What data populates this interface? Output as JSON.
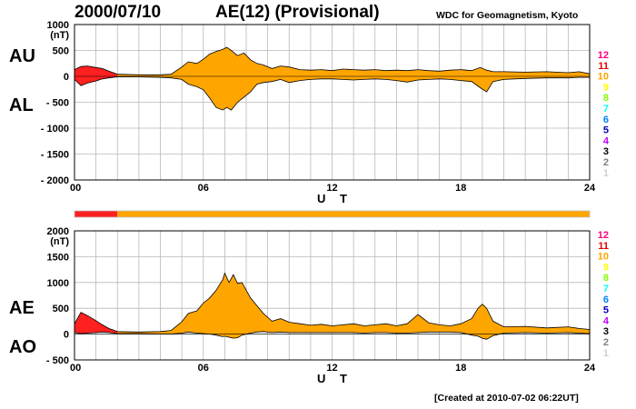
{
  "header": {
    "date": "2000/07/10",
    "title": "AE(12) (Provisional)",
    "source": "WDC for Geomagnetism, Kyoto"
  },
  "footer": "[Created at 2010-07-02 06:22UT]",
  "colors": {
    "orange": "#ffa500",
    "red": "#ff2020",
    "grid": "#b8b8b8"
  },
  "legend": {
    "levels": [
      "12",
      "11",
      "10",
      "9",
      "8",
      "7",
      "6",
      "5",
      "4",
      "3",
      "2",
      "1"
    ],
    "colors": [
      "#ff0080",
      "#e00000",
      "#ffa500",
      "#ffff00",
      "#80ff00",
      "#00ffff",
      "#0080ff",
      "#0000c0",
      "#c000ff",
      "#000000",
      "#808080",
      "#d0d0d0"
    ]
  },
  "status_bar": {
    "segments": [
      {
        "from": 0,
        "to": 2,
        "level": "11",
        "color": "#ff2020"
      },
      {
        "from": 2,
        "to": 24,
        "level": "10",
        "color": "#ffa500"
      }
    ]
  },
  "chart_data": [
    {
      "type": "area",
      "name": "AU-AL",
      "unit_label": "(nT)",
      "upper_label": "AU",
      "lower_label": "AL",
      "xlabel": "U T",
      "xlim": [
        0,
        24
      ],
      "ylim": [
        -2000,
        1000
      ],
      "yticks": [
        "1000",
        "500",
        "0",
        "- 500",
        "- 1000",
        "- 1500",
        "- 2000"
      ],
      "ytick_values": [
        1000,
        500,
        0,
        -500,
        -1000,
        -1500,
        -2000
      ],
      "xticks": [
        "00",
        "06",
        "12",
        "18",
        "24"
      ],
      "xtick_values": [
        0,
        6,
        12,
        18,
        24
      ],
      "red_until_hour": 2,
      "series": [
        {
          "name": "AU",
          "x": [
            0,
            0.3,
            0.6,
            1,
            1.3,
            1.6,
            2,
            3,
            4,
            4.5,
            5,
            5.3,
            5.7,
            6,
            6.3,
            6.6,
            6.9,
            7.1,
            7.3,
            7.6,
            7.9,
            8.2,
            8.5,
            8.8,
            9.2,
            9.6,
            10,
            10.5,
            11,
            11.5,
            12,
            12.5,
            13,
            13.5,
            14,
            14.5,
            15,
            15.5,
            16,
            16.5,
            17,
            17.5,
            18,
            18.5,
            18.9,
            19.2,
            19.5,
            20,
            21,
            22,
            23,
            23.5,
            24
          ],
          "values": [
            130,
            190,
            200,
            170,
            150,
            100,
            40,
            30,
            30,
            40,
            180,
            280,
            250,
            330,
            430,
            480,
            520,
            560,
            500,
            400,
            450,
            320,
            250,
            220,
            150,
            200,
            180,
            130,
            120,
            130,
            110,
            140,
            130,
            120,
            130,
            110,
            120,
            110,
            130,
            110,
            100,
            120,
            130,
            110,
            170,
            120,
            90,
            90,
            80,
            90,
            70,
            90,
            50
          ]
        },
        {
          "name": "AL",
          "x": [
            0,
            0.3,
            0.6,
            1,
            1.3,
            1.6,
            2,
            3,
            4,
            4.5,
            5,
            5.3,
            5.7,
            6,
            6.3,
            6.6,
            6.9,
            7.1,
            7.3,
            7.6,
            7.9,
            8.2,
            8.5,
            8.8,
            9.2,
            9.6,
            10,
            10.5,
            11,
            11.5,
            12,
            12.5,
            13,
            13.5,
            14,
            14.5,
            15,
            15.5,
            16,
            16.5,
            17,
            17.5,
            18,
            18.5,
            18.9,
            19.2,
            19.5,
            20,
            21,
            22,
            23,
            23.5,
            24
          ],
          "values": [
            -60,
            -180,
            -130,
            -90,
            -50,
            -30,
            -10,
            -10,
            -20,
            -30,
            -60,
            -150,
            -200,
            -260,
            -420,
            -600,
            -650,
            -600,
            -650,
            -500,
            -400,
            -300,
            -150,
            -120,
            -100,
            -60,
            -120,
            -80,
            -60,
            -50,
            -50,
            -60,
            -70,
            -60,
            -50,
            -60,
            -80,
            -110,
            -70,
            -60,
            -50,
            -60,
            -80,
            -100,
            -220,
            -300,
            -100,
            -60,
            -40,
            -30,
            -30,
            -20,
            -20
          ]
        }
      ]
    },
    {
      "type": "area",
      "name": "AE-AO",
      "unit_label": "(nT)",
      "upper_label": "AE",
      "lower_label": "AO",
      "xlabel": "U T",
      "xlim": [
        0,
        24
      ],
      "ylim": [
        -500,
        2000
      ],
      "yticks": [
        "2000",
        "1500",
        "1000",
        "500",
        "0",
        "- 500"
      ],
      "ytick_values": [
        2000,
        1500,
        1000,
        500,
        0,
        -500
      ],
      "xticks": [
        "00",
        "06",
        "12",
        "18",
        "24"
      ],
      "xtick_values": [
        0,
        6,
        12,
        18,
        24
      ],
      "red_until_hour": 2,
      "series": [
        {
          "name": "AE",
          "x": [
            0,
            0.3,
            0.6,
            1,
            1.3,
            1.6,
            2,
            3,
            4,
            4.5,
            5,
            5.3,
            5.7,
            6,
            6.3,
            6.6,
            6.9,
            7.0,
            7.2,
            7.4,
            7.6,
            7.8,
            8.0,
            8.2,
            8.5,
            8.8,
            9.2,
            9.6,
            10,
            10.5,
            11,
            11.5,
            12,
            12.5,
            13,
            13.5,
            14,
            14.5,
            15,
            15.5,
            16,
            16.5,
            17,
            17.5,
            18,
            18.5,
            18.8,
            19.0,
            19.2,
            19.5,
            20,
            21,
            22,
            23,
            23.5,
            24
          ],
          "values": [
            200,
            420,
            360,
            260,
            180,
            110,
            50,
            40,
            50,
            70,
            240,
            400,
            450,
            600,
            700,
            850,
            1050,
            1180,
            1000,
            1150,
            980,
            1000,
            850,
            700,
            550,
            400,
            250,
            300,
            230,
            200,
            170,
            190,
            160,
            180,
            200,
            160,
            180,
            200,
            160,
            200,
            380,
            220,
            180,
            160,
            200,
            300,
            500,
            580,
            500,
            250,
            140,
            150,
            120,
            140,
            110,
            90
          ]
        },
        {
          "name": "AO",
          "x": [
            0,
            0.3,
            0.6,
            1,
            1.3,
            1.6,
            2,
            3,
            4,
            4.5,
            5,
            5.3,
            5.7,
            6,
            6.3,
            6.6,
            6.9,
            7.0,
            7.2,
            7.4,
            7.6,
            7.8,
            8.0,
            8.2,
            8.5,
            8.8,
            9.2,
            9.6,
            10,
            10.5,
            11,
            11.5,
            12,
            12.5,
            13,
            13.5,
            14,
            14.5,
            15,
            15.5,
            16,
            16.5,
            17,
            17.5,
            18,
            18.5,
            18.8,
            19.0,
            19.2,
            19.5,
            20,
            21,
            22,
            23,
            23.5,
            24
          ],
          "values": [
            30,
            10,
            20,
            30,
            40,
            30,
            10,
            10,
            0,
            0,
            20,
            40,
            20,
            10,
            0,
            -20,
            -50,
            -40,
            -60,
            -80,
            -70,
            -20,
            0,
            20,
            40,
            50,
            30,
            40,
            30,
            30,
            30,
            30,
            30,
            30,
            30,
            20,
            30,
            30,
            20,
            20,
            30,
            40,
            40,
            40,
            30,
            -20,
            -40,
            -80,
            -100,
            -30,
            20,
            30,
            20,
            30,
            20,
            10
          ]
        }
      ]
    }
  ]
}
